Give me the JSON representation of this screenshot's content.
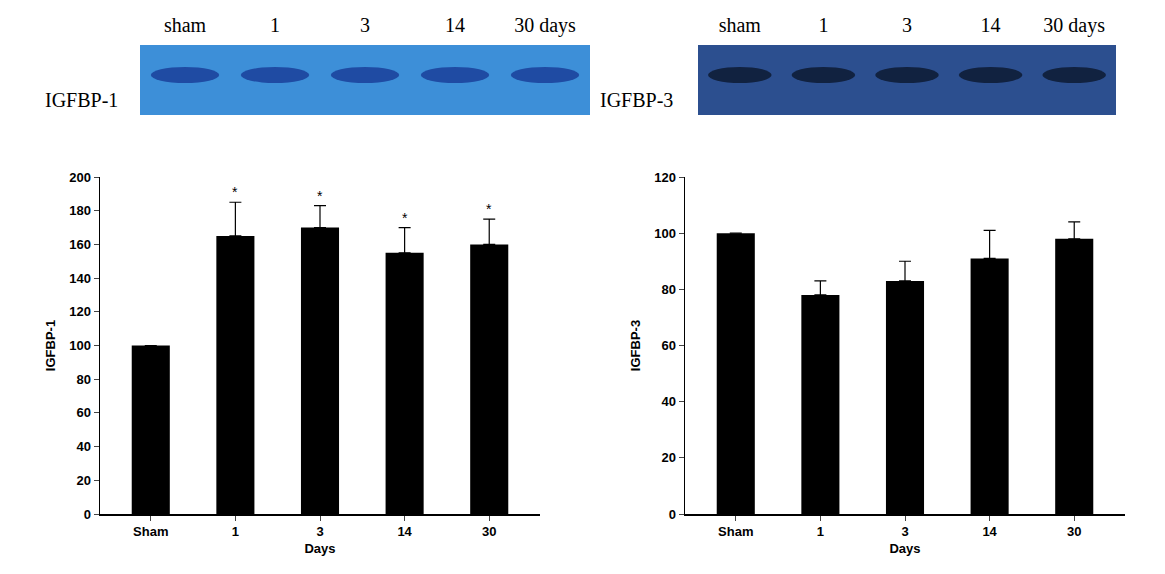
{
  "blots": [
    {
      "label": "IGFBP-1",
      "lanes": [
        "sham",
        "1",
        "3",
        "14",
        "30 days"
      ],
      "color": "#3d8fd8"
    },
    {
      "label": "IGFBP-3",
      "lanes": [
        "sham",
        "1",
        "3",
        "14",
        "30 days"
      ],
      "color": "#2c4f8f"
    }
  ],
  "chart_data": [
    {
      "type": "bar",
      "categories": [
        "Sham",
        "1",
        "3",
        "14",
        "30"
      ],
      "values": [
        100,
        165,
        170,
        155,
        160
      ],
      "errors": [
        0,
        20,
        13,
        15,
        15
      ],
      "color": "#000000",
      "x_label": "Days",
      "y_label": "IGFBP-1",
      "ylim": [
        0,
        200
      ],
      "yticks": [
        0,
        20,
        40,
        60,
        80,
        100,
        120,
        140,
        160,
        180,
        200
      ],
      "grid": false,
      "annotations": [
        {
          "category": "1",
          "text": "*"
        },
        {
          "category": "3",
          "text": "*"
        },
        {
          "category": "14",
          "text": "*"
        },
        {
          "category": "30",
          "text": "*"
        }
      ]
    },
    {
      "type": "bar",
      "categories": [
        "Sham",
        "1",
        "3",
        "14",
        "30"
      ],
      "values": [
        100,
        78,
        83,
        91,
        98
      ],
      "errors": [
        0,
        5,
        7,
        10,
        6
      ],
      "color": "#000000",
      "x_label": "Days",
      "y_label": "IGFBP-3",
      "ylim": [
        0,
        120
      ],
      "yticks": [
        0,
        20,
        40,
        60,
        80,
        100,
        120
      ],
      "grid": false
    }
  ]
}
